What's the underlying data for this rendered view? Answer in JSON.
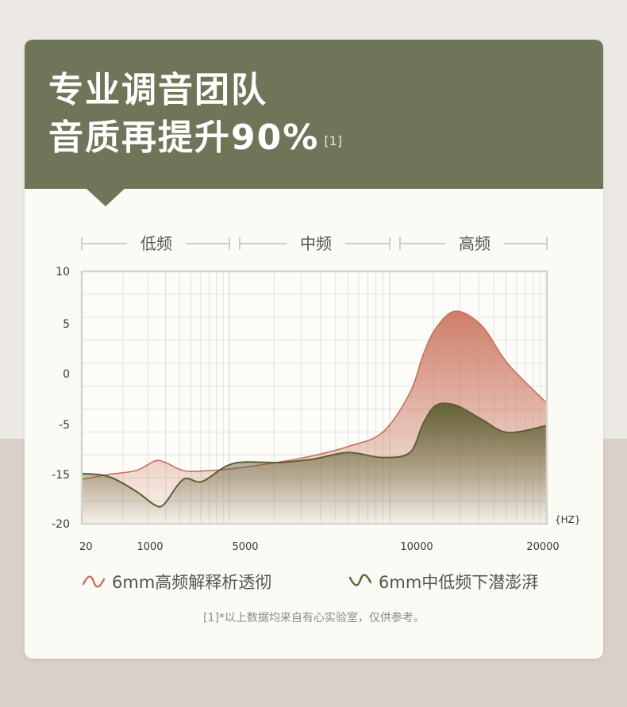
{
  "header": {
    "title_line1": "专业调音团队",
    "title_line2": "音质再提升90%",
    "title_note": "[1]"
  },
  "bands": [
    "低频",
    "中频",
    "高频"
  ],
  "legend": {
    "series1": "6mm高频解释析透彻",
    "series2": "6mm中低频下潜澎湃"
  },
  "footnote": "[1]*以上数据均来自有心实验室，仅供参考。",
  "colors": {
    "header": "#6f7558",
    "series1": "#c9705a",
    "series2": "#5e5f33"
  },
  "chart_data": {
    "type": "area",
    "xlabel": "{HZ}",
    "ylabel": "",
    "x_tick_labels": [
      "20",
      "1000",
      "5000",
      "10000",
      "20000"
    ],
    "y_tick_labels": [
      "10",
      "5",
      "0",
      "-5",
      "-15",
      "-20"
    ],
    "grid": true,
    "legend_position": "bottom",
    "series": [
      {
        "name": "6mm高频解释析透彻",
        "x": [
          20,
          400,
          800,
          1200,
          1600,
          2400,
          3200,
          4500,
          6000,
          7000,
          8000,
          9000,
          9800,
          10500,
          11500,
          13000,
          15000,
          17000,
          20000
        ],
        "y": [
          -15.5,
          -15,
          -14.2,
          -12.3,
          -12.5,
          -14.2,
          -14.3,
          -13.8,
          -12.5,
          -11.2,
          -9.4,
          -6.6,
          -1.9,
          1.9,
          4.6,
          6.2,
          4.8,
          1.0,
          -2.9
        ]
      },
      {
        "name": "6mm中低频下潜澎湃",
        "x": [
          20,
          400,
          800,
          1200,
          1600,
          2400,
          3200,
          4500,
          6000,
          7000,
          8000,
          9000,
          9800,
          10500,
          11500,
          13000,
          15000,
          17000,
          20000
        ],
        "y": [
          -14.8,
          -15.2,
          -16.7,
          -18.1,
          -18.0,
          -15.5,
          -15.7,
          -12.8,
          -12.6,
          -11.9,
          -10.6,
          -11.6,
          -10.6,
          -4.9,
          -3.1,
          -3.1,
          -4.5,
          -6.6,
          -5.2
        ]
      }
    ]
  }
}
